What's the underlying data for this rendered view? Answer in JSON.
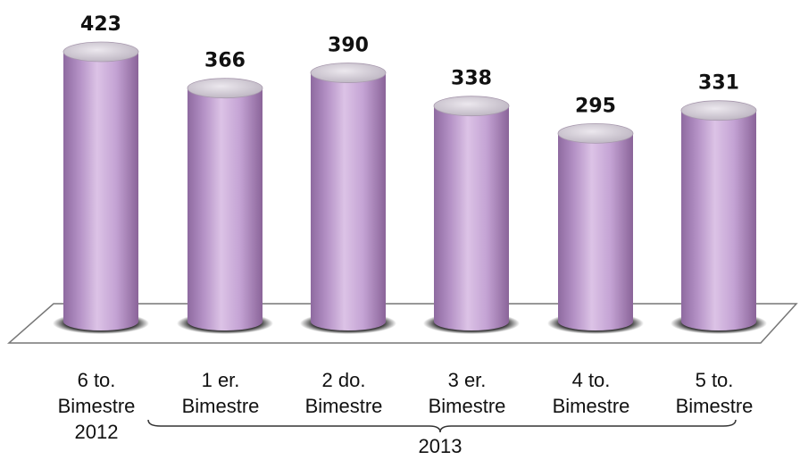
{
  "chart_data": {
    "type": "bar",
    "style": "3d-cylinder",
    "title": "",
    "xlabel": "",
    "ylabel": "",
    "ylim": [
      0,
      423
    ],
    "grid": false,
    "legend": "none",
    "categories": [
      [
        "6 to.",
        "Bimestre",
        "2012"
      ],
      [
        "1 er.",
        "Bimestre"
      ],
      [
        "2 do.",
        "Bimestre"
      ],
      [
        "3 er.",
        "Bimestre"
      ],
      [
        "4 to.",
        "Bimestre"
      ],
      [
        "5 to.",
        "Bimestre"
      ]
    ],
    "values": [
      423,
      366,
      390,
      338,
      295,
      331
    ],
    "group_label": "2013",
    "bar_color": "#c9a8d8",
    "bar_shade": "#8e6aa0",
    "top_color": "#d9d4dc"
  }
}
